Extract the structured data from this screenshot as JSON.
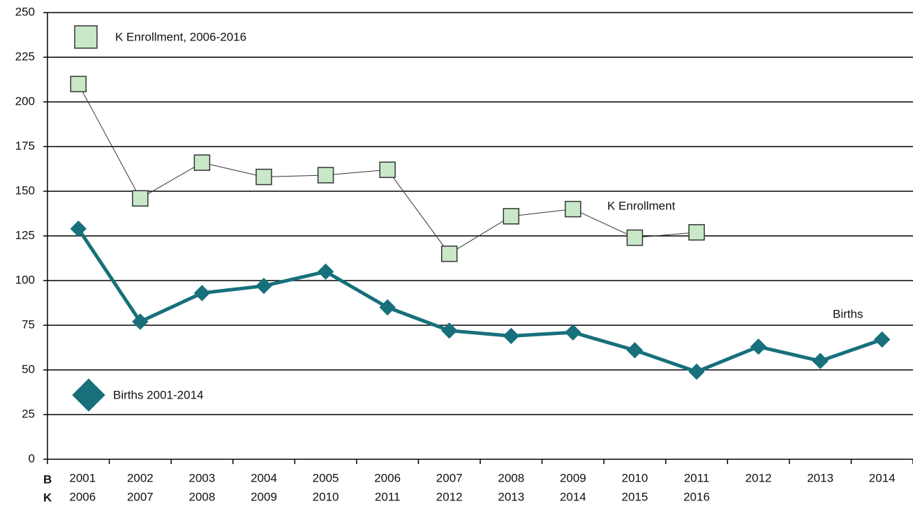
{
  "chart_data": {
    "type": "line",
    "row_labels": [
      "B",
      "K"
    ],
    "categories": [
      "2001",
      "2002",
      "2003",
      "2004",
      "2005",
      "2006",
      "2007",
      "2008",
      "2009",
      "2010",
      "2011",
      "2012",
      "2013",
      "2014"
    ],
    "categories2": [
      "2006",
      "2007",
      "2008",
      "2009",
      "2010",
      "2011",
      "2012",
      "2013",
      "2014",
      "2015",
      "2016",
      null,
      null,
      null
    ],
    "series": [
      {
        "name": "K Enrollment, 2006-2016",
        "color": "#c8e8c8",
        "line_color": "#333333",
        "marker": "square",
        "values": [
          210,
          146,
          166,
          158,
          159,
          162,
          115,
          136,
          140,
          124,
          127,
          null,
          null,
          null
        ]
      },
      {
        "name": "Births 2001-2014",
        "color": "#17707c",
        "line_color": "#17707c",
        "marker": "diamond",
        "values": [
          129,
          77,
          93,
          97,
          105,
          85,
          72,
          69,
          71,
          61,
          49,
          63,
          55,
          67
        ]
      }
    ],
    "annotations": [
      "K Enrollment",
      "Births"
    ],
    "ylim": [
      0,
      250
    ],
    "yticks": [
      0,
      25,
      50,
      75,
      100,
      125,
      150,
      175,
      200,
      225,
      250
    ],
    "grid": true
  }
}
